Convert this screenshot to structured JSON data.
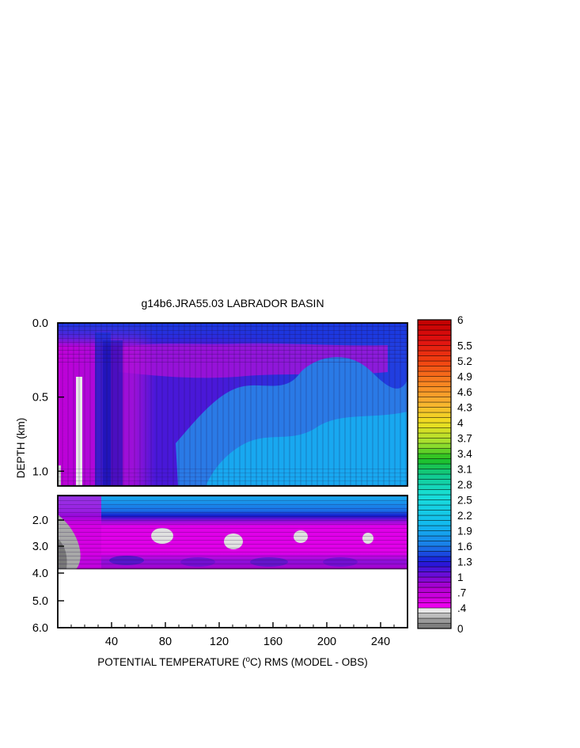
{
  "chart_data": {
    "type": "heatmap",
    "title": "g14b6.JRA55.03 LABRADOR BASIN",
    "xlabel_prefix": "POTENTIAL TEMPERATURE (",
    "xlabel_unit_sup": "o",
    "xlabel_unit": "C) RMS (MODEL - OBS)",
    "ylabel": "DEPTH (km)",
    "x_range": [
      0,
      260
    ],
    "x_ticks": [
      {
        "value": 40,
        "label": "40"
      },
      {
        "value": 80,
        "label": "80"
      },
      {
        "value": 120,
        "label": "120"
      },
      {
        "value": 160,
        "label": "160"
      },
      {
        "value": 200,
        "label": "200"
      },
      {
        "value": 240,
        "label": "240"
      }
    ],
    "upper_panel": {
      "depth_range_km": [
        0.0,
        1.1
      ],
      "y_ticks": [
        {
          "value": 0.0,
          "label": "0.0"
        },
        {
          "value": 0.5,
          "label": "0.5"
        },
        {
          "value": 1.0,
          "label": "1.0"
        }
      ]
    },
    "lower_panel": {
      "depth_range_km": [
        1.0,
        6.0
      ],
      "data_max_depth_km": 3.85,
      "y_ticks": [
        {
          "value": 2.0,
          "label": "2.0"
        },
        {
          "value": 3.0,
          "label": "3.0"
        },
        {
          "value": 4.0,
          "label": "4.0"
        },
        {
          "value": 5.0,
          "label": "5.0"
        },
        {
          "value": 6.0,
          "label": "6.0"
        }
      ]
    },
    "colorbar": {
      "min": 0,
      "max": 6,
      "labels": [
        {
          "value": 6,
          "label": "6"
        },
        {
          "value": 5.5,
          "label": "5.5"
        },
        {
          "value": 5.2,
          "label": "5.2"
        },
        {
          "value": 4.9,
          "label": "4.9"
        },
        {
          "value": 4.6,
          "label": "4.6"
        },
        {
          "value": 4.3,
          "label": "4.3"
        },
        {
          "value": 4,
          "label": "4"
        },
        {
          "value": 3.7,
          "label": "3.7"
        },
        {
          "value": 3.4,
          "label": "3.4"
        },
        {
          "value": 3.1,
          "label": "3.1"
        },
        {
          "value": 2.8,
          "label": "2.8"
        },
        {
          "value": 2.5,
          "label": "2.5"
        },
        {
          "value": 2.2,
          "label": "2.2"
        },
        {
          "value": 1.9,
          "label": "1.9"
        },
        {
          "value": 1.6,
          "label": "1.6"
        },
        {
          "value": 1.3,
          "label": "1.3"
        },
        {
          "value": 1,
          "label": "1"
        },
        {
          "value": 0.7,
          "label": ".7"
        },
        {
          "value": 0.4,
          "label": ".4"
        },
        {
          "value": 0,
          "label": "0"
        }
      ],
      "stops": [
        {
          "value": 0.0,
          "color": "#707070"
        },
        {
          "value": 0.2,
          "color": "#a8a8a8"
        },
        {
          "value": 0.35,
          "color": "#e8e8e8"
        },
        {
          "value": 0.42,
          "color": "#ee00ee"
        },
        {
          "value": 0.8,
          "color": "#b000d0"
        },
        {
          "value": 1.1,
          "color": "#5a10d8"
        },
        {
          "value": 1.3,
          "color": "#1a1ad8"
        },
        {
          "value": 1.6,
          "color": "#1a7ae8"
        },
        {
          "value": 2.0,
          "color": "#12b8f0"
        },
        {
          "value": 2.6,
          "color": "#18e0d8"
        },
        {
          "value": 3.0,
          "color": "#10c888"
        },
        {
          "value": 3.3,
          "color": "#20c020"
        },
        {
          "value": 3.6,
          "color": "#a0e030"
        },
        {
          "value": 4.0,
          "color": "#f0e020"
        },
        {
          "value": 4.4,
          "color": "#f8b030"
        },
        {
          "value": 4.8,
          "color": "#f88020"
        },
        {
          "value": 5.2,
          "color": "#f04010"
        },
        {
          "value": 5.6,
          "color": "#e01010"
        },
        {
          "value": 6.0,
          "color": "#c00000"
        }
      ]
    }
  }
}
